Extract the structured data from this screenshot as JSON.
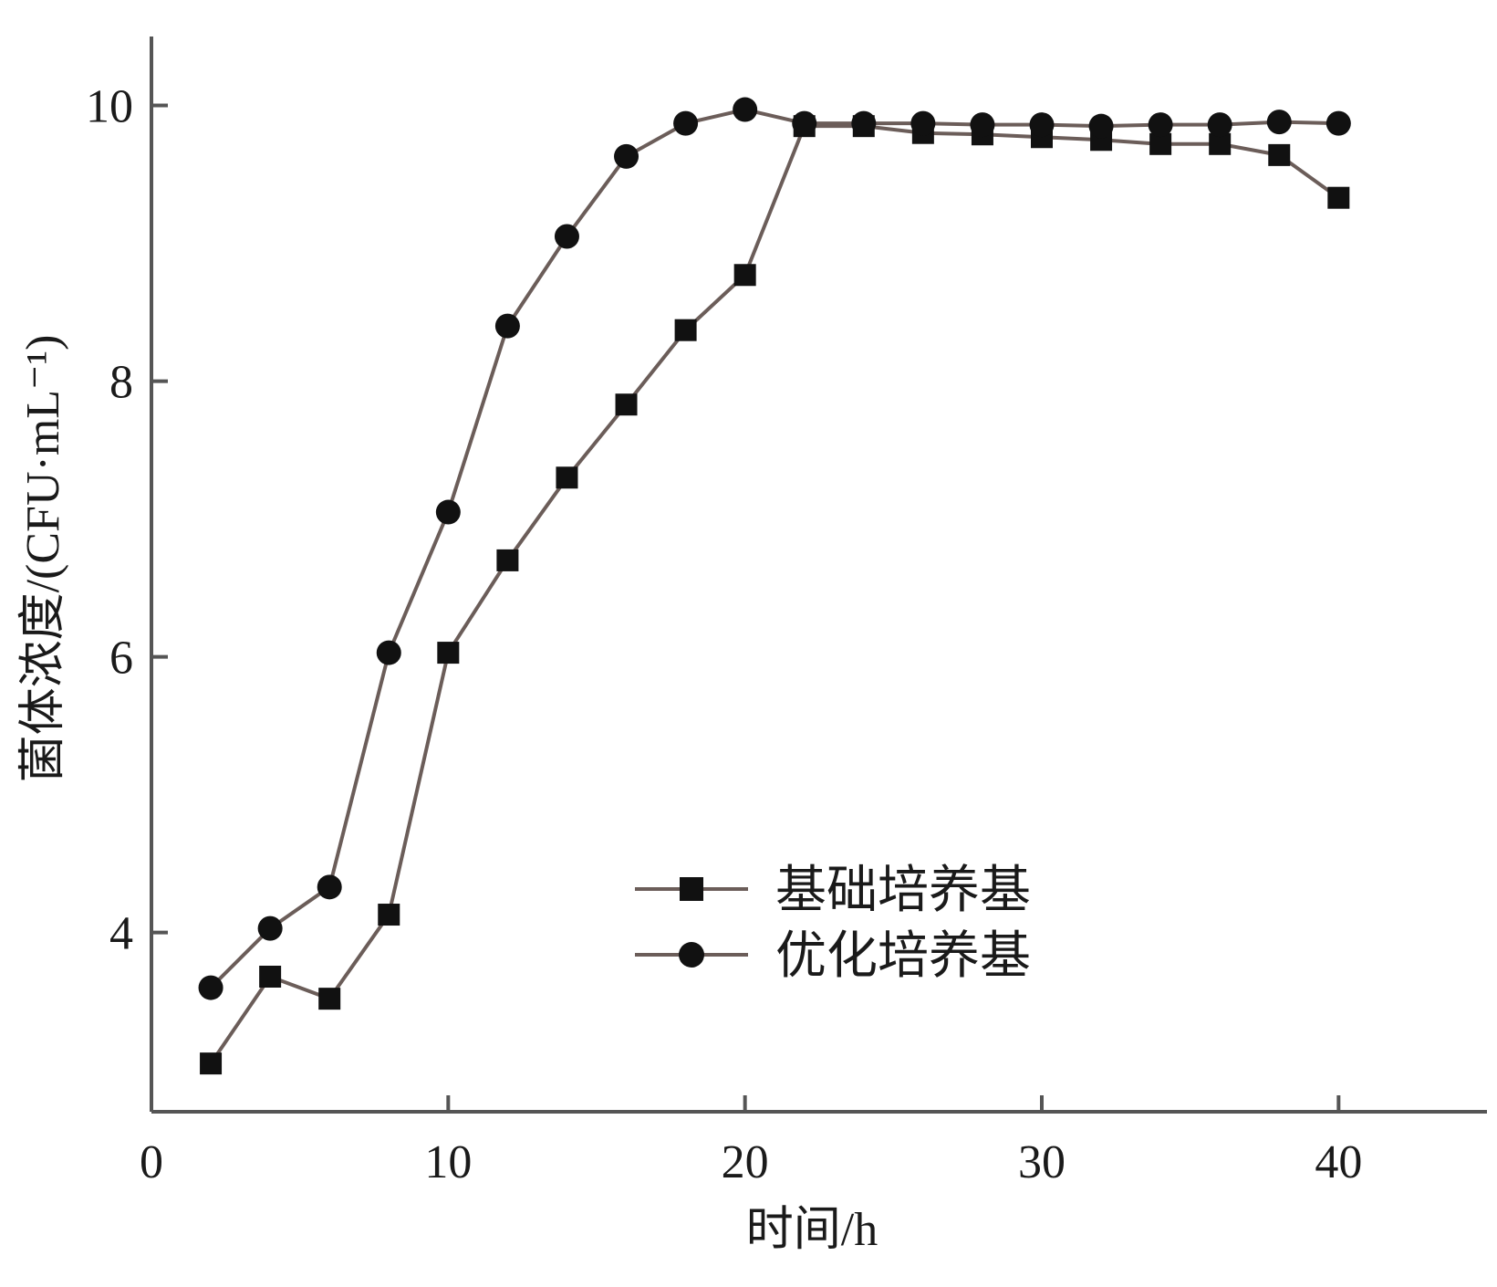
{
  "chart_data": {
    "type": "line",
    "title": "",
    "xlabel": "时间/h",
    "ylabel": "菌体浓度/(CFU·mL⁻¹)",
    "xlim": [
      0,
      45
    ],
    "ylim": [
      2.7,
      10.5
    ],
    "x_ticks": [
      0,
      10,
      20,
      30,
      40
    ],
    "x_tick_labels": [
      "0",
      "10",
      "20",
      "30",
      "40"
    ],
    "y_ticks": [
      4,
      6,
      8,
      10
    ],
    "y_tick_labels": [
      "4",
      "6",
      "8",
      "10"
    ],
    "grid": false,
    "legend_position": "lower-right",
    "colors": {
      "line": "#6b5d59",
      "marker": "#111111",
      "axis": "#555555"
    },
    "series": [
      {
        "name": "基础培养基",
        "marker": "square",
        "x": [
          2,
          4,
          6,
          8,
          10,
          12,
          14,
          16,
          18,
          20,
          22,
          24,
          26,
          28,
          30,
          32,
          34,
          36,
          38,
          40
        ],
        "y": [
          3.05,
          3.68,
          3.52,
          4.13,
          6.03,
          6.7,
          7.3,
          7.83,
          8.37,
          8.77,
          9.85,
          9.85,
          9.8,
          9.79,
          9.77,
          9.75,
          9.72,
          9.72,
          9.64,
          9.33
        ]
      },
      {
        "name": "优化培养基",
        "marker": "circle",
        "x": [
          2,
          4,
          6,
          8,
          10,
          12,
          14,
          16,
          18,
          20,
          22,
          24,
          26,
          28,
          30,
          32,
          34,
          36,
          38,
          40
        ],
        "y": [
          3.6,
          4.03,
          4.33,
          6.03,
          7.05,
          8.4,
          9.05,
          9.63,
          9.87,
          9.97,
          9.87,
          9.87,
          9.87,
          9.86,
          9.86,
          9.85,
          9.86,
          9.86,
          9.88,
          9.87
        ]
      }
    ]
  }
}
